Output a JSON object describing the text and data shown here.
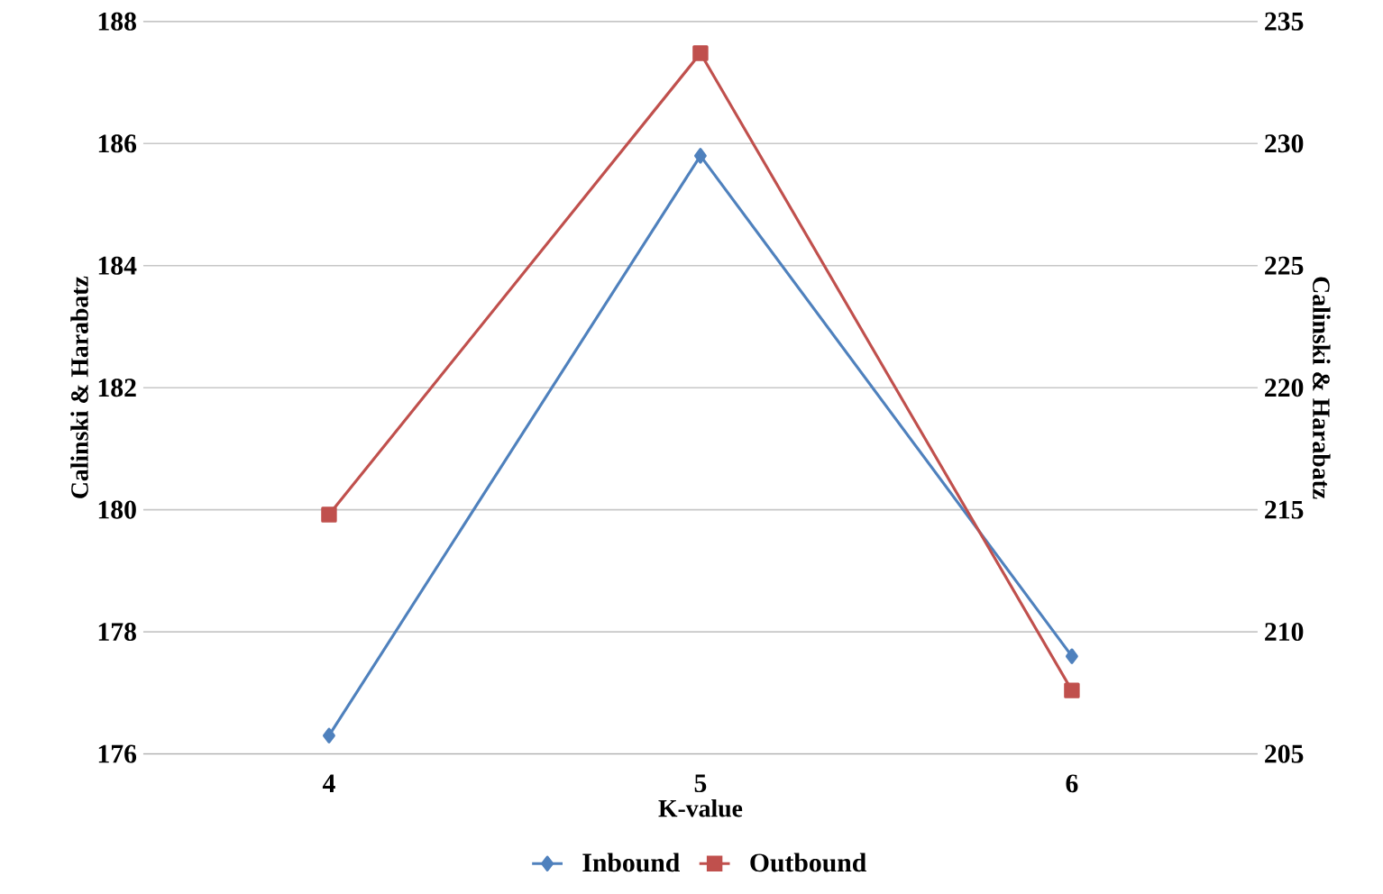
{
  "chart_data": {
    "type": "line",
    "categories": [
      "4",
      "5",
      "6"
    ],
    "xlabel": "K-value",
    "ylabel": "Calinski & Harabatz",
    "y2label": "Calinski & Harabatz",
    "series": [
      {
        "name": "Inbound",
        "color": "#4f81bd",
        "marker": "diamond",
        "values": [
          176.3,
          185.8,
          177.6
        ]
      },
      {
        "name": "Outbound",
        "color": "#c0504d",
        "marker": "square",
        "axis": "y2",
        "values": [
          214.8,
          233.7,
          207.6
        ]
      }
    ],
    "ylim": [
      176,
      188
    ],
    "yticks": [
      176,
      178,
      180,
      182,
      184,
      186,
      188
    ],
    "y2lim": [
      205,
      235
    ],
    "y2ticks": [
      205,
      210,
      215,
      220,
      225,
      230,
      235
    ],
    "grid": "y",
    "legend": "bottom"
  }
}
